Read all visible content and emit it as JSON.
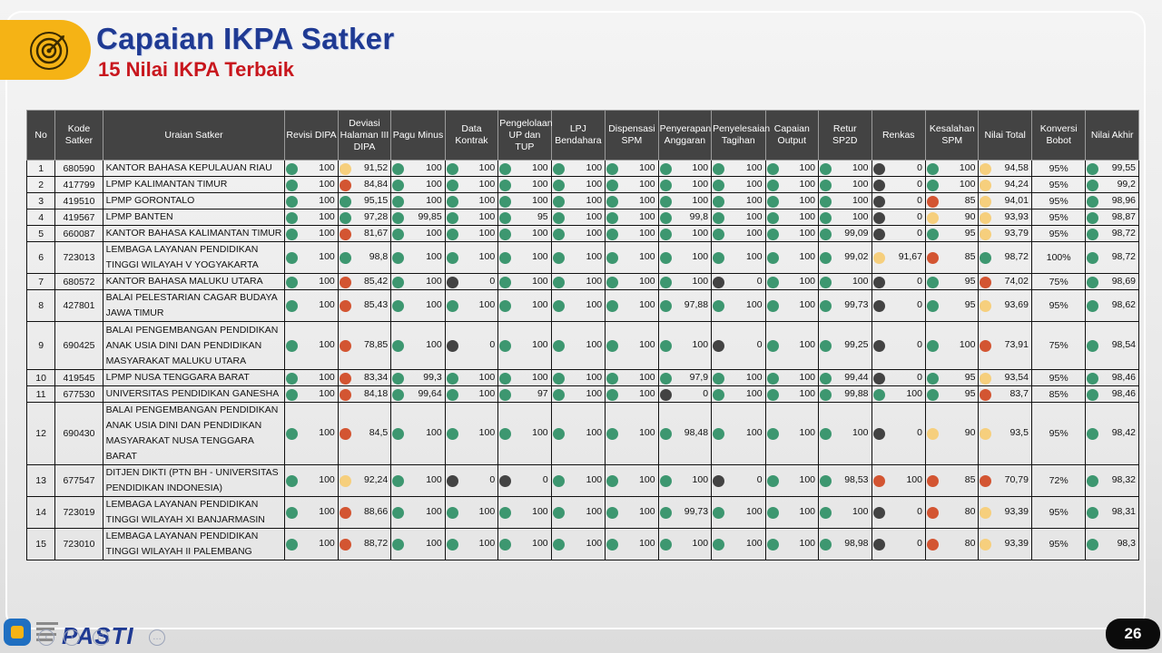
{
  "header": {
    "title": "Capaian IKPA Satker",
    "subtitle": "15 Nilai IKPA Terbaik"
  },
  "colors": {
    "green": "#3d9770",
    "red": "#d35532",
    "yellow": "#f6cf7d",
    "black": "#434343",
    "title_blue": "#1f3a93",
    "subtitle_red": "#c8171e"
  },
  "table": {
    "columns": [
      "No",
      "Kode Satker",
      "Uraian Satker",
      "Revisi DIPA",
      "Deviasi Halaman III DIPA",
      "Pagu Minus",
      "Data Kontrak",
      "Pengelolaan UP dan TUP",
      "LPJ Bendahara",
      "Dispensasi SPM",
      "Penyerapan Anggaran",
      "Penyelesaian Tagihan",
      "Capaian Output",
      "Retur SP2D",
      "Renkas",
      "Kesalahan SPM",
      "Nilai Total",
      "Konversi Bobot",
      "Nilai Akhir"
    ],
    "rows": [
      {
        "no": "1",
        "kode": "680590",
        "nama": "KANTOR BAHASA KEPULAUAN RIAU",
        "vals": [
          "100",
          "91,52",
          "100",
          "100",
          "100",
          "100",
          "100",
          "100",
          "100",
          "100",
          "100",
          "0",
          "100"
        ],
        "dots": [
          "g",
          "y",
          "g",
          "g",
          "g",
          "g",
          "g",
          "g",
          "g",
          "g",
          "g",
          "k",
          "g"
        ],
        "total": "94,58",
        "total_dot": "y",
        "konversi": "95%",
        "akhir": "99,55",
        "akhir_dot": "g",
        "h": "h1"
      },
      {
        "no": "2",
        "kode": "417799",
        "nama": "LPMP KALIMANTAN TIMUR",
        "vals": [
          "100",
          "84,84",
          "100",
          "100",
          "100",
          "100",
          "100",
          "100",
          "100",
          "100",
          "100",
          "0",
          "100"
        ],
        "dots": [
          "g",
          "r",
          "g",
          "g",
          "g",
          "g",
          "g",
          "g",
          "g",
          "g",
          "g",
          "k",
          "g"
        ],
        "total": "94,24",
        "total_dot": "y",
        "konversi": "95%",
        "akhir": "99,2",
        "akhir_dot": "g",
        "h": "h1"
      },
      {
        "no": "3",
        "kode": "419510",
        "nama": "LPMP GORONTALO",
        "vals": [
          "100",
          "95,15",
          "100",
          "100",
          "100",
          "100",
          "100",
          "100",
          "100",
          "100",
          "100",
          "0",
          "85"
        ],
        "dots": [
          "g",
          "g",
          "g",
          "g",
          "g",
          "g",
          "g",
          "g",
          "g",
          "g",
          "g",
          "k",
          "r"
        ],
        "total": "94,01",
        "total_dot": "y",
        "konversi": "95%",
        "akhir": "98,96",
        "akhir_dot": "g",
        "h": "h1"
      },
      {
        "no": "4",
        "kode": "419567",
        "nama": "LPMP BANTEN",
        "vals": [
          "100",
          "97,28",
          "99,85",
          "100",
          "95",
          "100",
          "100",
          "99,8",
          "100",
          "100",
          "100",
          "0",
          "90"
        ],
        "dots": [
          "g",
          "g",
          "g",
          "g",
          "g",
          "g",
          "g",
          "g",
          "g",
          "g",
          "g",
          "k",
          "y"
        ],
        "total": "93,93",
        "total_dot": "y",
        "konversi": "95%",
        "akhir": "98,87",
        "akhir_dot": "g",
        "h": "h1"
      },
      {
        "no": "5",
        "kode": "660087",
        "nama": "KANTOR BAHASA KALIMANTAN TIMUR",
        "vals": [
          "100",
          "81,67",
          "100",
          "100",
          "100",
          "100",
          "100",
          "100",
          "100",
          "100",
          "99,09",
          "0",
          "95"
        ],
        "dots": [
          "g",
          "r",
          "g",
          "g",
          "g",
          "g",
          "g",
          "g",
          "g",
          "g",
          "g",
          "k",
          "g"
        ],
        "total": "93,79",
        "total_dot": "y",
        "konversi": "95%",
        "akhir": "98,72",
        "akhir_dot": "g",
        "h": "h1"
      },
      {
        "no": "6",
        "kode": "723013",
        "nama": "LEMBAGA LAYANAN PENDIDIKAN TINGGI WILAYAH V YOGYAKARTA",
        "vals": [
          "100",
          "98,8",
          "100",
          "100",
          "100",
          "100",
          "100",
          "100",
          "100",
          "100",
          "99,02",
          "91,67",
          "85"
        ],
        "dots": [
          "g",
          "g",
          "g",
          "g",
          "g",
          "g",
          "g",
          "g",
          "g",
          "g",
          "g",
          "y",
          "r"
        ],
        "total": "98,72",
        "total_dot": "g",
        "konversi": "100%",
        "akhir": "98,72",
        "akhir_dot": "g",
        "h": "h2"
      },
      {
        "no": "7",
        "kode": "680572",
        "nama": "KANTOR BAHASA MALUKU UTARA",
        "vals": [
          "100",
          "85,42",
          "100",
          "0",
          "100",
          "100",
          "100",
          "100",
          "0",
          "100",
          "100",
          "0",
          "95"
        ],
        "dots": [
          "g",
          "r",
          "g",
          "k",
          "g",
          "g",
          "g",
          "g",
          "k",
          "g",
          "g",
          "k",
          "g"
        ],
        "total": "74,02",
        "total_dot": "r",
        "konversi": "75%",
        "akhir": "98,69",
        "akhir_dot": "g",
        "h": "h1"
      },
      {
        "no": "8",
        "kode": "427801",
        "nama": "BALAI PELESTARIAN CAGAR BUDAYA JAWA TIMUR",
        "vals": [
          "100",
          "85,43",
          "100",
          "100",
          "100",
          "100",
          "100",
          "97,88",
          "100",
          "100",
          "99,73",
          "0",
          "95"
        ],
        "dots": [
          "g",
          "r",
          "g",
          "g",
          "g",
          "g",
          "g",
          "g",
          "g",
          "g",
          "g",
          "k",
          "g"
        ],
        "total": "93,69",
        "total_dot": "y",
        "konversi": "95%",
        "akhir": "98,62",
        "akhir_dot": "g",
        "h": "h2"
      },
      {
        "no": "9",
        "kode": "690425",
        "nama": "BALAI PENGEMBANGAN PENDIDIKAN ANAK USIA DINI DAN PENDIDIKAN MASYARAKAT MALUKU UTARA",
        "vals": [
          "100",
          "78,85",
          "100",
          "0",
          "100",
          "100",
          "100",
          "100",
          "0",
          "100",
          "99,25",
          "0",
          "100"
        ],
        "dots": [
          "g",
          "r",
          "g",
          "k",
          "g",
          "g",
          "g",
          "g",
          "k",
          "g",
          "g",
          "k",
          "g"
        ],
        "total": "73,91",
        "total_dot": "r",
        "konversi": "75%",
        "akhir": "98,54",
        "akhir_dot": "g",
        "h": "h3"
      },
      {
        "no": "10",
        "kode": "419545",
        "nama": "LPMP NUSA TENGGARA BARAT",
        "vals": [
          "100",
          "83,34",
          "99,3",
          "100",
          "100",
          "100",
          "100",
          "97,9",
          "100",
          "100",
          "99,44",
          "0",
          "95"
        ],
        "dots": [
          "g",
          "r",
          "g",
          "g",
          "g",
          "g",
          "g",
          "g",
          "g",
          "g",
          "g",
          "k",
          "g"
        ],
        "total": "93,54",
        "total_dot": "y",
        "konversi": "95%",
        "akhir": "98,46",
        "akhir_dot": "g",
        "h": "h1"
      },
      {
        "no": "11",
        "kode": "677530",
        "nama": "UNIVERSITAS PENDIDIKAN GANESHA",
        "vals": [
          "100",
          "84,18",
          "99,64",
          "100",
          "97",
          "100",
          "100",
          "0",
          "100",
          "100",
          "99,88",
          "100",
          "95"
        ],
        "dots": [
          "g",
          "r",
          "g",
          "g",
          "g",
          "g",
          "g",
          "k",
          "g",
          "g",
          "g",
          "g",
          "g"
        ],
        "total": "83,7",
        "total_dot": "r",
        "konversi": "85%",
        "akhir": "98,46",
        "akhir_dot": "g",
        "h": "h1"
      },
      {
        "no": "12",
        "kode": "690430",
        "nama": "BALAI PENGEMBANGAN PENDIDIKAN ANAK USIA DINI DAN PENDIDIKAN MASYARAKAT NUSA TENGGARA BARAT",
        "vals": [
          "100",
          "84,5",
          "100",
          "100",
          "100",
          "100",
          "100",
          "98,48",
          "100",
          "100",
          "100",
          "0",
          "90"
        ],
        "dots": [
          "g",
          "r",
          "g",
          "g",
          "g",
          "g",
          "g",
          "g",
          "g",
          "g",
          "g",
          "k",
          "y"
        ],
        "total": "93,5",
        "total_dot": "y",
        "konversi": "95%",
        "akhir": "98,42",
        "akhir_dot": "g",
        "h": "h3"
      },
      {
        "no": "13",
        "kode": "677547",
        "nama": "DITJEN DIKTI (PTN BH - UNIVERSITAS PENDIDIKAN INDONESIA)",
        "vals": [
          "100",
          "92,24",
          "100",
          "0",
          "0",
          "100",
          "100",
          "100",
          "0",
          "100",
          "98,53",
          "100",
          "85"
        ],
        "dots": [
          "g",
          "y",
          "g",
          "k",
          "k",
          "g",
          "g",
          "g",
          "k",
          "g",
          "g",
          "r",
          "r"
        ],
        "total": "70,79",
        "total_dot": "r",
        "konversi": "72%",
        "akhir": "98,32",
        "akhir_dot": "g",
        "h": "h2"
      },
      {
        "no": "14",
        "kode": "723019",
        "nama": "LEMBAGA LAYANAN PENDIDIKAN TINGGI WILAYAH XI BANJARMASIN",
        "vals": [
          "100",
          "88,66",
          "100",
          "100",
          "100",
          "100",
          "100",
          "99,73",
          "100",
          "100",
          "100",
          "0",
          "80"
        ],
        "dots": [
          "g",
          "r",
          "g",
          "g",
          "g",
          "g",
          "g",
          "g",
          "g",
          "g",
          "g",
          "k",
          "r"
        ],
        "total": "93,39",
        "total_dot": "y",
        "konversi": "95%",
        "akhir": "98,31",
        "akhir_dot": "g",
        "h": "h2"
      },
      {
        "no": "15",
        "kode": "723010",
        "nama": "LEMBAGA LAYANAN PENDIDIKAN TINGGI WILAYAH II PALEMBANG",
        "vals": [
          "100",
          "88,72",
          "100",
          "100",
          "100",
          "100",
          "100",
          "100",
          "100",
          "100",
          "98,98",
          "0",
          "80"
        ],
        "dots": [
          "g",
          "r",
          "g",
          "g",
          "g",
          "g",
          "g",
          "g",
          "g",
          "g",
          "g",
          "k",
          "r"
        ],
        "total": "93,39",
        "total_dot": "y",
        "konversi": "95%",
        "akhir": "98,3",
        "akhir_dot": "g",
        "h": "h2"
      }
    ]
  },
  "footer": {
    "brand": "PASTI",
    "page_number": "26",
    "logo_icon": "pasti-logo-icon",
    "ctrl_icons": [
      "previous-icon",
      "next-icon",
      "slides-icon",
      "more-icon"
    ]
  }
}
